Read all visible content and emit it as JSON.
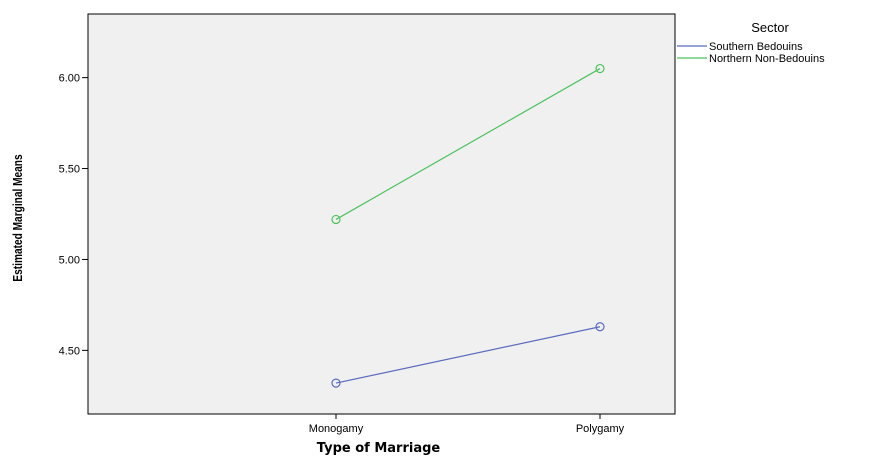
{
  "chart_data": {
    "type": "line",
    "categories": [
      "Monogamy",
      "Polygamy"
    ],
    "series": [
      {
        "name": "Southern Bedouins",
        "values": [
          4.32,
          4.63
        ],
        "color": "#5b6bbf"
      },
      {
        "name": "Northern Non-Bedouins",
        "values": [
          5.22,
          6.05
        ],
        "color": "#4cc25c"
      }
    ],
    "xlabel": "Type of Marriage",
    "ylabel": "Estimated Marginal Means",
    "yticks": [
      "4.50",
      "5.00",
      "5.50",
      "6.00"
    ],
    "ylim": [
      4.15,
      6.35
    ],
    "legend_title": "Sector",
    "legend_position": "top-right",
    "plot_background": "#f0f0f0",
    "grid": false,
    "marker": "open-circle"
  }
}
